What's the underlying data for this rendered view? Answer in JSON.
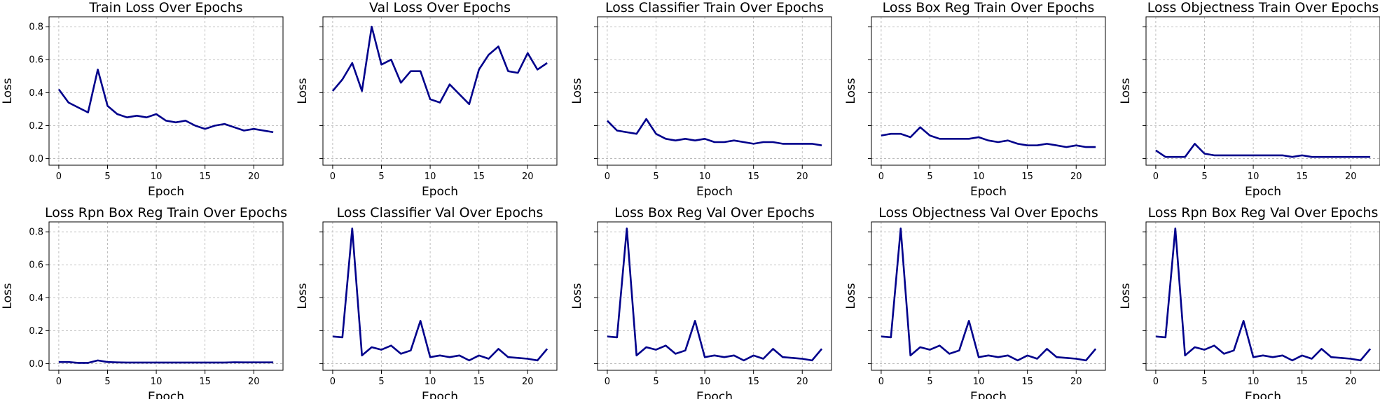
{
  "chart_data": [
    {
      "type": "line",
      "title": "Train Loss Over Epochs",
      "xlabel": "Epoch",
      "ylabel": "Loss",
      "xlim": [
        -1,
        23
      ],
      "ylim": [
        -0.04,
        0.86
      ],
      "xticks": [
        0,
        5,
        10,
        15,
        20
      ],
      "yticks": [
        0.0,
        0.2,
        0.4,
        0.6,
        0.8
      ],
      "show_ytick_labels": true,
      "grid": true,
      "line_color": "#00008b",
      "x": [
        0,
        1,
        2,
        3,
        4,
        5,
        6,
        7,
        8,
        9,
        10,
        11,
        12,
        13,
        14,
        15,
        16,
        17,
        18,
        19,
        20,
        21,
        22
      ],
      "values": [
        0.42,
        0.34,
        0.31,
        0.28,
        0.54,
        0.32,
        0.27,
        0.25,
        0.26,
        0.25,
        0.27,
        0.23,
        0.22,
        0.23,
        0.2,
        0.18,
        0.2,
        0.21,
        0.19,
        0.17,
        0.18,
        0.17,
        0.16
      ]
    },
    {
      "type": "line",
      "title": "Val Loss Over Epochs",
      "xlabel": "Epoch",
      "ylabel": "Loss",
      "xlim": [
        -1,
        23
      ],
      "ylim": [
        -0.04,
        0.86
      ],
      "xticks": [
        0,
        5,
        10,
        15,
        20
      ],
      "yticks": [
        0.0,
        0.2,
        0.4,
        0.6,
        0.8
      ],
      "show_ytick_labels": false,
      "grid": true,
      "line_color": "#00008b",
      "x": [
        0,
        1,
        2,
        3,
        4,
        5,
        6,
        7,
        8,
        9,
        10,
        11,
        12,
        13,
        14,
        15,
        16,
        17,
        18,
        19,
        20,
        21,
        22
      ],
      "values": [
        0.41,
        0.48,
        0.58,
        0.41,
        0.8,
        0.57,
        0.6,
        0.46,
        0.53,
        0.53,
        0.36,
        0.34,
        0.45,
        0.39,
        0.33,
        0.54,
        0.63,
        0.68,
        0.53,
        0.52,
        0.64,
        0.54,
        0.58
      ]
    },
    {
      "type": "line",
      "title": "Loss Classifier Train Over Epochs",
      "xlabel": "Epoch",
      "ylabel": "Loss",
      "xlim": [
        -1,
        23
      ],
      "ylim": [
        -0.04,
        0.86
      ],
      "xticks": [
        0,
        5,
        10,
        15,
        20
      ],
      "yticks": [
        0.0,
        0.2,
        0.4,
        0.6,
        0.8
      ],
      "show_ytick_labels": false,
      "grid": true,
      "line_color": "#00008b",
      "x": [
        0,
        1,
        2,
        3,
        4,
        5,
        6,
        7,
        8,
        9,
        10,
        11,
        12,
        13,
        14,
        15,
        16,
        17,
        18,
        19,
        20,
        21,
        22
      ],
      "values": [
        0.23,
        0.17,
        0.16,
        0.15,
        0.24,
        0.15,
        0.12,
        0.11,
        0.12,
        0.11,
        0.12,
        0.1,
        0.1,
        0.11,
        0.1,
        0.09,
        0.1,
        0.1,
        0.09,
        0.09,
        0.09,
        0.09,
        0.08
      ]
    },
    {
      "type": "line",
      "title": "Loss Box Reg Train Over Epochs",
      "xlabel": "Epoch",
      "ylabel": "Loss",
      "xlim": [
        -1,
        23
      ],
      "ylim": [
        -0.04,
        0.86
      ],
      "xticks": [
        0,
        5,
        10,
        15,
        20
      ],
      "yticks": [
        0.0,
        0.2,
        0.4,
        0.6,
        0.8
      ],
      "show_ytick_labels": false,
      "grid": true,
      "line_color": "#00008b",
      "x": [
        0,
        1,
        2,
        3,
        4,
        5,
        6,
        7,
        8,
        9,
        10,
        11,
        12,
        13,
        14,
        15,
        16,
        17,
        18,
        19,
        20,
        21,
        22
      ],
      "values": [
        0.14,
        0.15,
        0.15,
        0.13,
        0.19,
        0.14,
        0.12,
        0.12,
        0.12,
        0.12,
        0.13,
        0.11,
        0.1,
        0.11,
        0.09,
        0.08,
        0.08,
        0.09,
        0.08,
        0.07,
        0.08,
        0.07,
        0.07
      ]
    },
    {
      "type": "line",
      "title": "Loss Objectness Train Over Epochs",
      "xlabel": "Epoch",
      "ylabel": "Loss",
      "xlim": [
        -1,
        23
      ],
      "ylim": [
        -0.04,
        0.86
      ],
      "xticks": [
        0,
        5,
        10,
        15,
        20
      ],
      "yticks": [
        0.0,
        0.2,
        0.4,
        0.6,
        0.8
      ],
      "show_ytick_labels": false,
      "grid": true,
      "line_color": "#00008b",
      "x": [
        0,
        1,
        2,
        3,
        4,
        5,
        6,
        7,
        8,
        9,
        10,
        11,
        12,
        13,
        14,
        15,
        16,
        17,
        18,
        19,
        20,
        21,
        22
      ],
      "values": [
        0.05,
        0.01,
        0.01,
        0.01,
        0.09,
        0.03,
        0.02,
        0.02,
        0.02,
        0.02,
        0.02,
        0.02,
        0.02,
        0.02,
        0.01,
        0.02,
        0.01,
        0.01,
        0.01,
        0.01,
        0.01,
        0.01,
        0.01
      ]
    },
    {
      "type": "line",
      "title": "Loss Rpn Box Reg Train Over Epochs",
      "xlabel": "Epoch",
      "ylabel": "Loss",
      "xlim": [
        -1,
        23
      ],
      "ylim": [
        -0.04,
        0.86
      ],
      "xticks": [
        0,
        5,
        10,
        15,
        20
      ],
      "yticks": [
        0.0,
        0.2,
        0.4,
        0.6,
        0.8
      ],
      "show_ytick_labels": true,
      "grid": true,
      "line_color": "#00008b",
      "x": [
        0,
        1,
        2,
        3,
        4,
        5,
        6,
        7,
        8,
        9,
        10,
        11,
        12,
        13,
        14,
        15,
        16,
        17,
        18,
        19,
        20,
        21,
        22
      ],
      "values": [
        0.01,
        0.01,
        0.005,
        0.005,
        0.02,
        0.01,
        0.008,
        0.007,
        0.007,
        0.007,
        0.007,
        0.007,
        0.007,
        0.007,
        0.007,
        0.007,
        0.007,
        0.007,
        0.009,
        0.008,
        0.008,
        0.008,
        0.008
      ]
    },
    {
      "type": "line",
      "title": "Loss Classifier Val Over Epochs",
      "xlabel": "Epoch",
      "ylabel": "Loss",
      "xlim": [
        -1,
        23
      ],
      "ylim": [
        -0.04,
        0.86
      ],
      "xticks": [
        0,
        5,
        10,
        15,
        20
      ],
      "yticks": [
        0.0,
        0.2,
        0.4,
        0.6,
        0.8
      ],
      "show_ytick_labels": false,
      "grid": true,
      "line_color": "#00008b",
      "x": [
        0,
        1,
        2,
        3,
        4,
        5,
        6,
        7,
        8,
        9,
        10,
        11,
        12,
        13,
        14,
        15,
        16,
        17,
        18,
        19,
        20,
        21,
        22
      ],
      "values": [
        0.165,
        0.16,
        0.82,
        0.05,
        0.1,
        0.085,
        0.11,
        0.06,
        0.08,
        0.26,
        0.04,
        0.05,
        0.04,
        0.05,
        0.02,
        0.05,
        0.03,
        0.09,
        0.04,
        0.035,
        0.03,
        0.02,
        0.09
      ]
    },
    {
      "type": "line",
      "title": "Loss Box Reg Val Over Epochs",
      "xlabel": "Epoch",
      "ylabel": "Loss",
      "xlim": [
        -1,
        23
      ],
      "ylim": [
        -0.04,
        0.86
      ],
      "xticks": [
        0,
        5,
        10,
        15,
        20
      ],
      "yticks": [
        0.0,
        0.2,
        0.4,
        0.6,
        0.8
      ],
      "show_ytick_labels": false,
      "grid": true,
      "line_color": "#00008b",
      "x": [
        0,
        1,
        2,
        3,
        4,
        5,
        6,
        7,
        8,
        9,
        10,
        11,
        12,
        13,
        14,
        15,
        16,
        17,
        18,
        19,
        20,
        21,
        22
      ],
      "values": [
        0.165,
        0.16,
        0.82,
        0.05,
        0.1,
        0.085,
        0.11,
        0.06,
        0.08,
        0.26,
        0.04,
        0.05,
        0.04,
        0.05,
        0.02,
        0.05,
        0.03,
        0.09,
        0.04,
        0.035,
        0.03,
        0.02,
        0.09
      ]
    },
    {
      "type": "line",
      "title": "Loss Objectness Val Over Epochs",
      "xlabel": "Epoch",
      "ylabel": "Loss",
      "xlim": [
        -1,
        23
      ],
      "ylim": [
        -0.04,
        0.86
      ],
      "xticks": [
        0,
        5,
        10,
        15,
        20
      ],
      "yticks": [
        0.0,
        0.2,
        0.4,
        0.6,
        0.8
      ],
      "show_ytick_labels": false,
      "grid": true,
      "line_color": "#00008b",
      "x": [
        0,
        1,
        2,
        3,
        4,
        5,
        6,
        7,
        8,
        9,
        10,
        11,
        12,
        13,
        14,
        15,
        16,
        17,
        18,
        19,
        20,
        21,
        22
      ],
      "values": [
        0.165,
        0.16,
        0.82,
        0.05,
        0.1,
        0.085,
        0.11,
        0.06,
        0.08,
        0.26,
        0.04,
        0.05,
        0.04,
        0.05,
        0.02,
        0.05,
        0.03,
        0.09,
        0.04,
        0.035,
        0.03,
        0.02,
        0.09
      ]
    },
    {
      "type": "line",
      "title": "Loss Rpn Box Reg Val Over Epochs",
      "xlabel": "Epoch",
      "ylabel": "Loss",
      "xlim": [
        -1,
        23
      ],
      "ylim": [
        -0.04,
        0.86
      ],
      "xticks": [
        0,
        5,
        10,
        15,
        20
      ],
      "yticks": [
        0.0,
        0.2,
        0.4,
        0.6,
        0.8
      ],
      "show_ytick_labels": false,
      "grid": true,
      "line_color": "#00008b",
      "x": [
        0,
        1,
        2,
        3,
        4,
        5,
        6,
        7,
        8,
        9,
        10,
        11,
        12,
        13,
        14,
        15,
        16,
        17,
        18,
        19,
        20,
        21,
        22
      ],
      "values": [
        0.165,
        0.16,
        0.82,
        0.05,
        0.1,
        0.085,
        0.11,
        0.06,
        0.08,
        0.26,
        0.04,
        0.05,
        0.04,
        0.05,
        0.02,
        0.05,
        0.03,
        0.09,
        0.04,
        0.035,
        0.03,
        0.02,
        0.09
      ]
    }
  ]
}
